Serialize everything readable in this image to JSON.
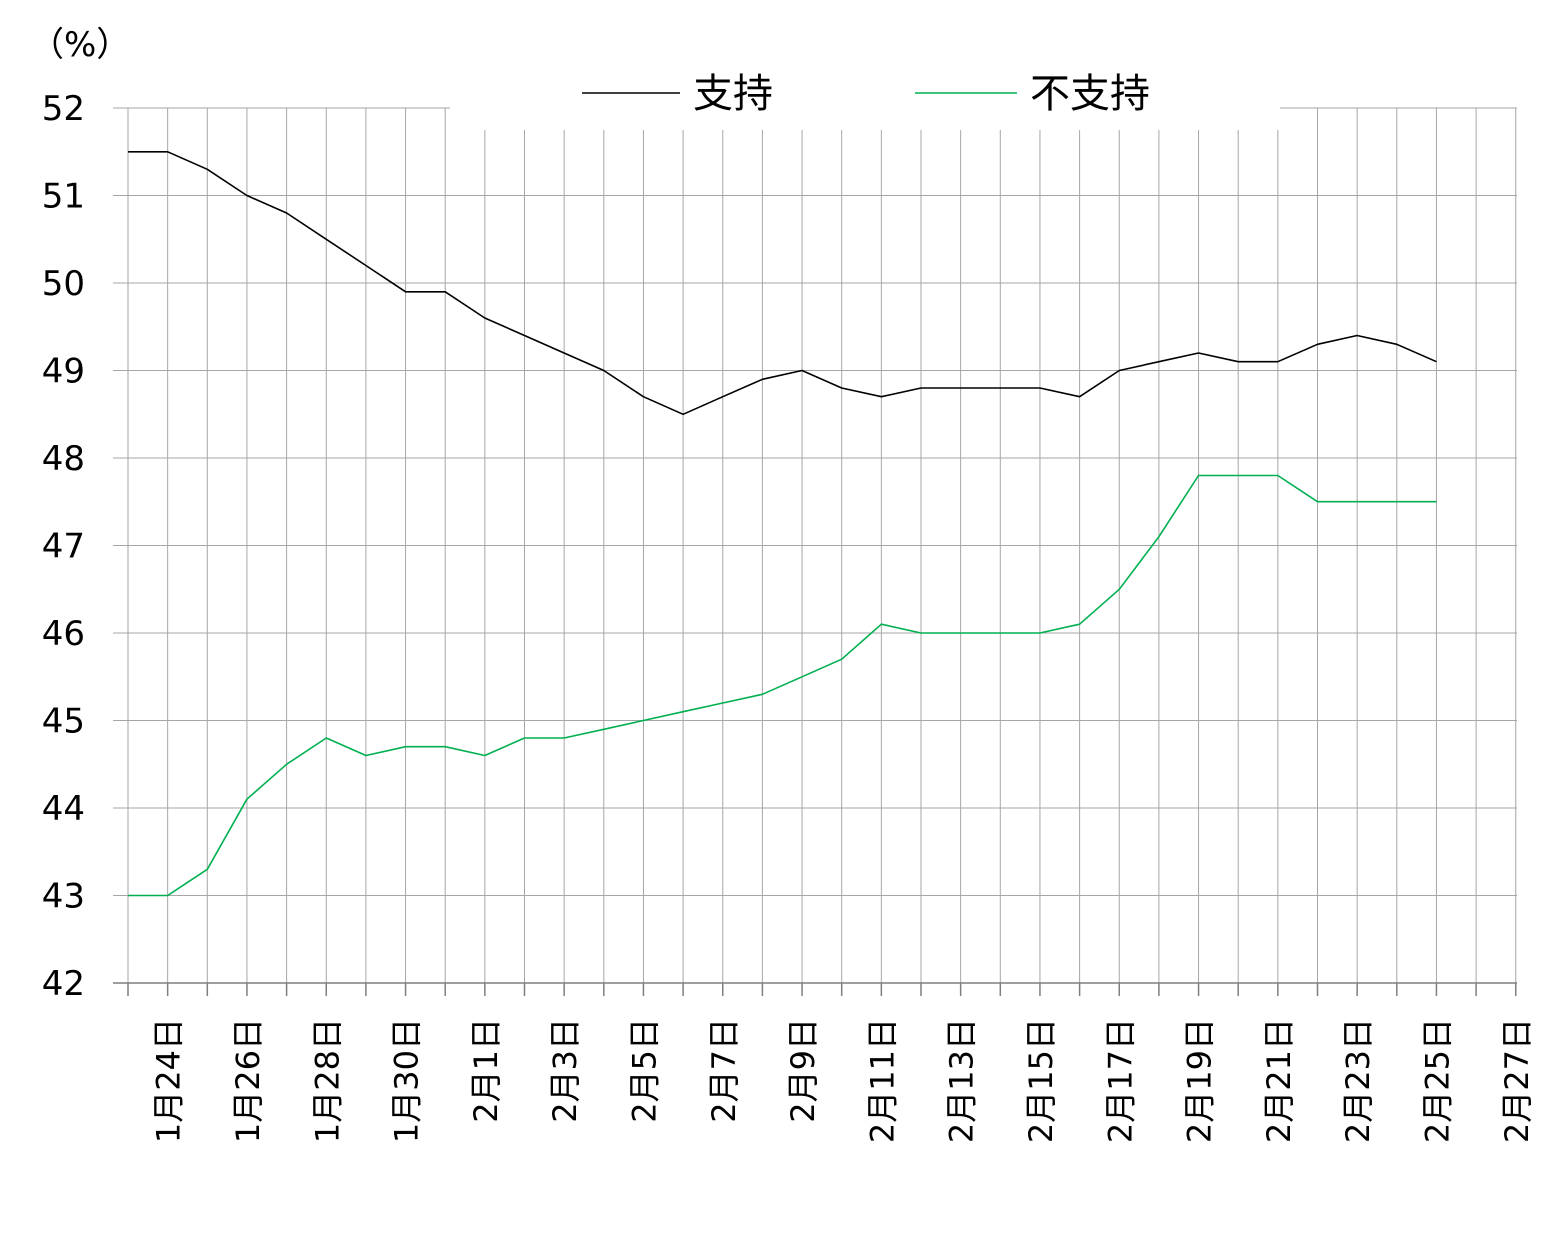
{
  "chart_data": {
    "type": "line",
    "unit_label": "（%）",
    "ylim": [
      42,
      52
    ],
    "yticks": [
      42,
      43,
      44,
      45,
      46,
      47,
      48,
      49,
      50,
      51,
      52
    ],
    "xlim": [
      "1月23日",
      "2月27日"
    ],
    "xticks": [
      "1月24日",
      "1月26日",
      "1月28日",
      "1月30日",
      "2月1日",
      "2月3日",
      "2月5日",
      "2月7日",
      "2月9日",
      "2月11日",
      "2月13日",
      "2月15日",
      "2月17日",
      "2月19日",
      "2月21日",
      "2月23日",
      "2月25日",
      "2月27日"
    ],
    "grid": true,
    "legend_position": "top-center",
    "x": [
      "1月23日",
      "1月24日",
      "1月25日",
      "1月26日",
      "1月27日",
      "1月28日",
      "1月29日",
      "1月30日",
      "1月31日",
      "2月1日",
      "2月2日",
      "2月3日",
      "2月4日",
      "2月5日",
      "2月6日",
      "2月7日",
      "2月8日",
      "2月9日",
      "2月10日",
      "2月11日",
      "2月12日",
      "2月13日",
      "2月14日",
      "2月15日",
      "2月16日",
      "2月17日",
      "2月18日",
      "2月19日",
      "2月20日",
      "2月21日",
      "2月22日",
      "2月23日",
      "2月24日",
      "2月25日"
    ],
    "series": [
      {
        "name": "支持",
        "color": "#000000",
        "values": [
          51.5,
          51.5,
          51.3,
          51.0,
          50.8,
          50.5,
          50.2,
          49.9,
          49.9,
          49.6,
          49.4,
          49.2,
          49.0,
          48.7,
          48.5,
          48.7,
          48.9,
          49.0,
          48.8,
          48.7,
          48.8,
          48.8,
          48.8,
          48.8,
          48.7,
          49.0,
          49.1,
          49.2,
          49.1,
          49.1,
          49.3,
          49.4,
          49.3,
          49.1
        ]
      },
      {
        "name": "不支持",
        "color": "#00b050",
        "values": [
          43.0,
          43.0,
          43.3,
          44.1,
          44.5,
          44.8,
          44.6,
          44.7,
          44.7,
          44.6,
          44.8,
          44.8,
          44.9,
          45.0,
          45.1,
          45.2,
          45.3,
          45.5,
          45.7,
          46.1,
          46.0,
          46.0,
          46.0,
          46.0,
          46.1,
          46.5,
          47.1,
          47.8,
          47.8,
          47.8,
          47.5,
          47.5,
          47.5,
          47.5
        ]
      }
    ]
  }
}
